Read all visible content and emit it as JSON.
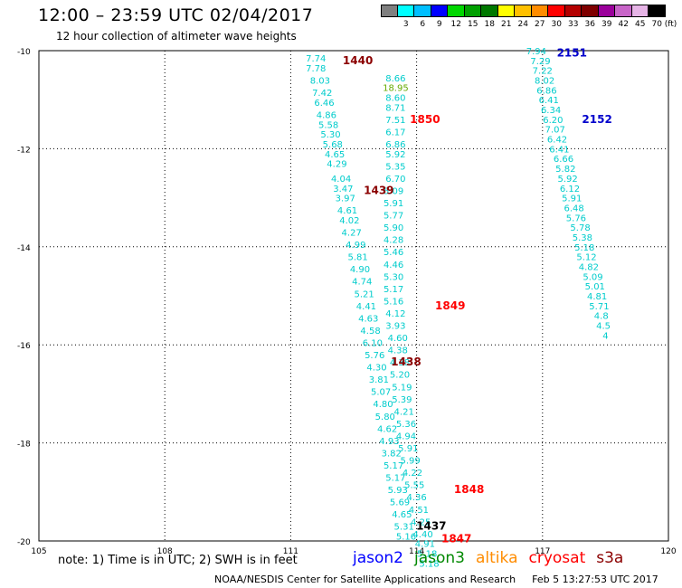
{
  "header": {
    "title": "12:00 – 23:59 UTC 02/04/2017",
    "subtitle": "12 hour collection of altimeter wave heights"
  },
  "colorbar": {
    "unit": "(ft)",
    "colors": [
      "#7f7f7f",
      "#00ffff",
      "#00bfff",
      "#0000ff",
      "#00d700",
      "#00a000",
      "#007800",
      "#ffff00",
      "#ffc000",
      "#ff8c00",
      "#ff0000",
      "#b40000",
      "#7f0000",
      "#9b009b",
      "#c864c8",
      "#e6b4e6",
      "#000000"
    ],
    "labels": [
      "",
      "3",
      "6",
      "9",
      "12",
      "15",
      "18",
      "21",
      "24",
      "27",
      "30",
      "33",
      "36",
      "39",
      "42",
      "45",
      "70"
    ]
  },
  "chart_data": {
    "type": "scatter",
    "title": "12:00 – 23:59 UTC 02/04/2017",
    "subtitle": "12 hour collection of altimeter wave heights",
    "x_ticks": [
      105,
      108,
      111,
      114,
      117,
      120
    ],
    "y_ticks": [
      -10,
      -12,
      -14,
      -16,
      -18,
      -20
    ],
    "xlim": [
      105,
      120
    ],
    "ylim": [
      -20,
      -10
    ],
    "grid": "dotted",
    "unit": "ft",
    "tracks": [
      {
        "name": "cryosat",
        "color": "#00cccc",
        "points": [
          {
            "x": 111.6,
            "y": -10.15,
            "v": "7.74"
          },
          {
            "x": 111.6,
            "y": -10.35,
            "v": "7.78"
          },
          {
            "x": 111.7,
            "y": -10.6,
            "v": "8.03"
          },
          {
            "x": 111.75,
            "y": -10.85,
            "v": "7.42"
          },
          {
            "x": 111.8,
            "y": -11.05,
            "v": "6.46"
          },
          {
            "x": 111.85,
            "y": -11.3,
            "v": "4.86"
          },
          {
            "x": 111.9,
            "y": -11.5,
            "v": "5.58"
          },
          {
            "x": 111.95,
            "y": -11.7,
            "v": "5.30"
          },
          {
            "x": 112.0,
            "y": -11.9,
            "v": "5.68"
          },
          {
            "x": 112.05,
            "y": -12.1,
            "v": "4.65"
          },
          {
            "x": 112.1,
            "y": -12.3,
            "v": "4.29"
          },
          {
            "x": 112.2,
            "y": -12.6,
            "v": "4.04"
          },
          {
            "x": 112.25,
            "y": -12.8,
            "v": "3.47"
          },
          {
            "x": 112.3,
            "y": -13.0,
            "v": "3.97"
          },
          {
            "x": 112.35,
            "y": -13.25,
            "v": "4.61"
          },
          {
            "x": 112.4,
            "y": -13.45,
            "v": "4.02"
          },
          {
            "x": 112.45,
            "y": -13.7,
            "v": "4.27"
          },
          {
            "x": 112.55,
            "y": -13.95,
            "v": "4.99"
          },
          {
            "x": 112.6,
            "y": -14.2,
            "v": "5.81"
          },
          {
            "x": 112.65,
            "y": -14.45,
            "v": "4.90"
          },
          {
            "x": 112.7,
            "y": -14.7,
            "v": "4.74"
          },
          {
            "x": 112.75,
            "y": -14.95,
            "v": "5.21"
          },
          {
            "x": 112.8,
            "y": -15.2,
            "v": "4.41"
          },
          {
            "x": 112.85,
            "y": -15.45,
            "v": "4.63"
          },
          {
            "x": 112.9,
            "y": -15.7,
            "v": "4.58"
          },
          {
            "x": 112.95,
            "y": -15.95,
            "v": "6.10"
          },
          {
            "x": 113.0,
            "y": -16.2,
            "v": "5.76"
          },
          {
            "x": 113.05,
            "y": -16.45,
            "v": "4.30"
          },
          {
            "x": 113.1,
            "y": -16.7,
            "v": "3.81"
          },
          {
            "x": 113.15,
            "y": -16.95,
            "v": "5.07"
          },
          {
            "x": 113.2,
            "y": -17.2,
            "v": "4.80"
          },
          {
            "x": 113.25,
            "y": -17.45,
            "v": "5.80"
          },
          {
            "x": 113.3,
            "y": -17.7,
            "v": "4.62"
          },
          {
            "x": 113.35,
            "y": -17.95,
            "v": "4.93"
          },
          {
            "x": 113.4,
            "y": -18.2,
            "v": "3.82"
          },
          {
            "x": 113.45,
            "y": -18.45,
            "v": "5.17"
          },
          {
            "x": 113.5,
            "y": -18.7,
            "v": "5.17"
          },
          {
            "x": 113.55,
            "y": -18.95,
            "v": "5.93"
          },
          {
            "x": 113.6,
            "y": -19.2,
            "v": "5.69"
          },
          {
            "x": 113.65,
            "y": -19.45,
            "v": "4.65"
          },
          {
            "x": 113.7,
            "y": -19.7,
            "v": "5.31"
          },
          {
            "x": 113.75,
            "y": -19.9,
            "v": "5.16"
          }
        ]
      },
      {
        "name": "cryosat",
        "color": "#00cccc",
        "points": [
          {
            "x": 113.5,
            "y": -10.55,
            "v": "8.66"
          },
          {
            "x": 113.5,
            "y": -10.75,
            "v": "18.95",
            "color": "#66aa00"
          },
          {
            "x": 113.5,
            "y": -10.95,
            "v": "8.60"
          },
          {
            "x": 113.5,
            "y": -11.15,
            "v": "8.71"
          },
          {
            "x": 113.5,
            "y": -11.4,
            "v": "7.51"
          },
          {
            "x": 113.5,
            "y": -11.65,
            "v": "6.17"
          },
          {
            "x": 113.5,
            "y": -11.9,
            "v": "6.86"
          },
          {
            "x": 113.5,
            "y": -12.1,
            "v": "5.92"
          },
          {
            "x": 113.5,
            "y": -12.35,
            "v": "5.35"
          },
          {
            "x": 113.5,
            "y": -12.6,
            "v": "6.70"
          },
          {
            "x": 113.45,
            "y": -12.85,
            "v": "5.09"
          },
          {
            "x": 113.45,
            "y": -13.1,
            "v": "5.91"
          },
          {
            "x": 113.45,
            "y": -13.35,
            "v": "5.77"
          },
          {
            "x": 113.45,
            "y": -13.6,
            "v": "5.90"
          },
          {
            "x": 113.45,
            "y": -13.85,
            "v": "4.28"
          },
          {
            "x": 113.45,
            "y": -14.1,
            "v": "5.46"
          },
          {
            "x": 113.45,
            "y": -14.35,
            "v": "4.46"
          },
          {
            "x": 113.45,
            "y": -14.6,
            "v": "5.30"
          },
          {
            "x": 113.45,
            "y": -14.85,
            "v": "5.17"
          },
          {
            "x": 113.45,
            "y": -15.1,
            "v": "5.16"
          },
          {
            "x": 113.5,
            "y": -15.35,
            "v": "4.12"
          },
          {
            "x": 113.5,
            "y": -15.6,
            "v": "3.93"
          },
          {
            "x": 113.55,
            "y": -15.85,
            "v": "4.60"
          },
          {
            "x": 113.55,
            "y": -16.1,
            "v": "4.38"
          },
          {
            "x": 113.6,
            "y": -16.35,
            "v": "4.38"
          },
          {
            "x": 113.6,
            "y": -16.6,
            "v": "5.20"
          },
          {
            "x": 113.65,
            "y": -16.85,
            "v": "5.19"
          },
          {
            "x": 113.65,
            "y": -17.1,
            "v": "5.39"
          },
          {
            "x": 113.7,
            "y": -17.35,
            "v": "4.21"
          },
          {
            "x": 113.75,
            "y": -17.6,
            "v": "5.36"
          },
          {
            "x": 113.75,
            "y": -17.85,
            "v": "4.94"
          },
          {
            "x": 113.8,
            "y": -18.1,
            "v": "5.91"
          },
          {
            "x": 113.85,
            "y": -18.35,
            "v": "5.99"
          },
          {
            "x": 113.9,
            "y": -18.6,
            "v": "4.22"
          },
          {
            "x": 113.95,
            "y": -18.85,
            "v": "5.55"
          },
          {
            "x": 114.0,
            "y": -19.1,
            "v": "4.36"
          },
          {
            "x": 114.05,
            "y": -19.35,
            "v": "4.51"
          },
          {
            "x": 114.1,
            "y": -19.6,
            "v": "4.25"
          },
          {
            "x": 114.15,
            "y": -19.85,
            "v": "4.40"
          },
          {
            "x": 114.2,
            "y": -20.05,
            "v": "4.91"
          },
          {
            "x": 114.25,
            "y": -20.25,
            "v": "5.18"
          },
          {
            "x": 114.3,
            "y": -20.45,
            "v": "5.18"
          }
        ]
      },
      {
        "name": "cryosat",
        "color": "#00cccc",
        "points": [
          {
            "x": 116.85,
            "y": -10.0,
            "v": "7.94"
          },
          {
            "x": 116.95,
            "y": -10.2,
            "v": "7.29"
          },
          {
            "x": 117.0,
            "y": -10.4,
            "v": "7.22"
          },
          {
            "x": 117.05,
            "y": -10.6,
            "v": "8.02"
          },
          {
            "x": 117.1,
            "y": -10.8,
            "v": "6.86"
          },
          {
            "x": 117.15,
            "y": -11.0,
            "v": "6.41"
          },
          {
            "x": 117.2,
            "y": -11.2,
            "v": "6.34"
          },
          {
            "x": 117.25,
            "y": -11.4,
            "v": "6.20"
          },
          {
            "x": 117.3,
            "y": -11.6,
            "v": "7.07"
          },
          {
            "x": 117.35,
            "y": -11.8,
            "v": "6.42"
          },
          {
            "x": 117.4,
            "y": -12.0,
            "v": "6.41"
          },
          {
            "x": 117.5,
            "y": -12.2,
            "v": "6.66"
          },
          {
            "x": 117.55,
            "y": -12.4,
            "v": "5.82"
          },
          {
            "x": 117.6,
            "y": -12.6,
            "v": "5.92"
          },
          {
            "x": 117.65,
            "y": -12.8,
            "v": "6.12"
          },
          {
            "x": 117.7,
            "y": -13.0,
            "v": "5.91"
          },
          {
            "x": 117.75,
            "y": -13.2,
            "v": "6.48"
          },
          {
            "x": 117.8,
            "y": -13.4,
            "v": "5.76"
          },
          {
            "x": 117.9,
            "y": -13.6,
            "v": "5.78"
          },
          {
            "x": 117.95,
            "y": -13.8,
            "v": "5.38"
          },
          {
            "x": 118.0,
            "y": -14.0,
            "v": "5.18"
          },
          {
            "x": 118.05,
            "y": -14.2,
            "v": "5.12"
          },
          {
            "x": 118.1,
            "y": -14.4,
            "v": "4.82"
          },
          {
            "x": 118.2,
            "y": -14.6,
            "v": "5.09"
          },
          {
            "x": 118.25,
            "y": -14.8,
            "v": "5.01"
          },
          {
            "x": 118.3,
            "y": -15.0,
            "v": "4.81"
          },
          {
            "x": 118.35,
            "y": -15.2,
            "v": "5.71"
          },
          {
            "x": 118.4,
            "y": -15.4,
            "v": "4.8"
          },
          {
            "x": 118.45,
            "y": -15.6,
            "v": "4.5"
          },
          {
            "x": 118.5,
            "y": -15.8,
            "v": "4"
          }
        ]
      }
    ],
    "time_labels": [
      {
        "text": "1440",
        "x": 112.6,
        "y": -10.2,
        "color": "#8b0000"
      },
      {
        "text": "1850",
        "x": 114.2,
        "y": -11.4,
        "color": "#ff0000"
      },
      {
        "text": "1439",
        "x": 113.1,
        "y": -12.85,
        "color": "#8b0000"
      },
      {
        "text": "1849",
        "x": 114.8,
        "y": -15.2,
        "color": "#ff0000"
      },
      {
        "text": "1438",
        "x": 113.75,
        "y": -16.35,
        "color": "#8b0000"
      },
      {
        "text": "1848",
        "x": 115.25,
        "y": -18.95,
        "color": "#ff0000"
      },
      {
        "text": "1437",
        "x": 114.35,
        "y": -19.7,
        "color": "#000000"
      },
      {
        "text": "1847",
        "x": 114.95,
        "y": -19.95,
        "color": "#ff0000"
      },
      {
        "text": "2151",
        "x": 117.7,
        "y": -10.05,
        "color": "#0000cc"
      },
      {
        "text": "2152",
        "x": 118.3,
        "y": -11.4,
        "color": "#0000cc"
      }
    ]
  },
  "footer": {
    "note": "note: 1) Time is in UTC; 2) SWH is in feet",
    "legend": [
      {
        "label": "jason2",
        "color": "#0000ff"
      },
      {
        "label": "jason3",
        "color": "#008800"
      },
      {
        "label": "altika",
        "color": "#ff8c00"
      },
      {
        "label": "cryosat",
        "color": "#ff0000"
      },
      {
        "label": "s3a",
        "color": "#8b0000"
      }
    ],
    "credit": "NOAA/NESDIS Center for Satellite Applications and Research",
    "timestamp": "Feb  5 13:27:53 UTC 2017"
  }
}
